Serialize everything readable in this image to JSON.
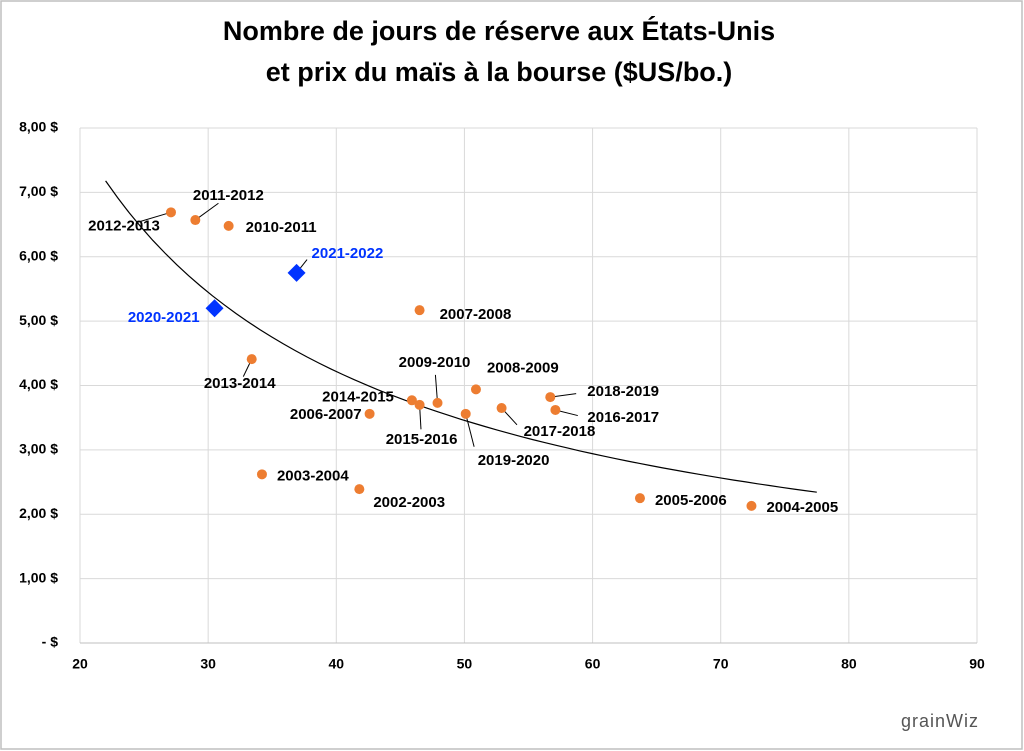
{
  "chart_data": {
    "type": "scatter",
    "title": [
      "Nombre de jours de réserve aux États-Unis",
      "et prix du maïs à la bourse ($US/bo.)"
    ],
    "xlim": [
      20,
      90
    ],
    "xticks": [
      20,
      30,
      40,
      50,
      60,
      70,
      80,
      90
    ],
    "ylim": [
      0,
      8
    ],
    "yticks": [
      {
        "value": 0,
        "label": "-   $"
      },
      {
        "value": 1,
        "label": "1,00 $"
      },
      {
        "value": 2,
        "label": "2,00 $"
      },
      {
        "value": 3,
        "label": "3,00 $"
      },
      {
        "value": 4,
        "label": "4,00 $"
      },
      {
        "value": 5,
        "label": "5,00 $"
      },
      {
        "value": 6,
        "label": "6,00 $"
      },
      {
        "value": 7,
        "label": "7,00 $"
      },
      {
        "value": 8,
        "label": "8,00 $"
      }
    ],
    "grid": true,
    "trendline": {
      "type": "power",
      "x_range": [
        22,
        77.5
      ],
      "color": "#000000"
    },
    "series": [
      {
        "color": "#ED7D31",
        "marker": "circle",
        "label_color": "#000000",
        "labels": [
          "2012-2013",
          "2011-2012",
          "2010-2011",
          "2007-2008",
          "2013-2014",
          "2008-2009",
          "2018-2019",
          "2016-2017",
          "2009-2010",
          "2014-2015",
          "2015-2016",
          "2006-2007",
          "2019-2020",
          "2017-2018",
          "2003-2004",
          "2002-2003",
          "2005-2006",
          "2004-2005"
        ],
        "x": [
          27.1,
          29.0,
          31.6,
          46.5,
          33.4,
          50.9,
          56.7,
          57.1,
          47.9,
          45.9,
          46.5,
          42.6,
          50.1,
          52.9,
          34.2,
          41.8,
          63.7,
          72.4
        ],
        "values": [
          6.69,
          6.57,
          6.48,
          5.17,
          4.41,
          3.94,
          3.82,
          3.62,
          3.73,
          3.77,
          3.7,
          3.56,
          3.56,
          3.65,
          2.62,
          2.39,
          2.25,
          2.13
        ]
      },
      {
        "color": "#0033FF",
        "marker": "diamond",
        "label_color": "#0033FF",
        "labels": [
          "2021-2022",
          "2020-2021"
        ],
        "x": [
          36.9,
          30.5
        ],
        "values": [
          5.75,
          5.2
        ]
      }
    ],
    "logo": "grainWiz"
  }
}
